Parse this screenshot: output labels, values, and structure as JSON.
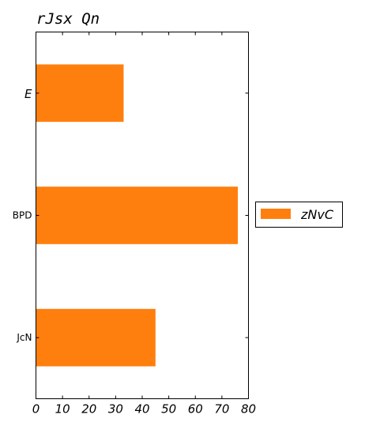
{
  "chart_data": {
    "type": "bar",
    "orientation": "horizontal",
    "title": "rJsx Qn",
    "categories": [
      "E",
      "BPD",
      "JcN"
    ],
    "series": [
      {
        "name": "zNvC",
        "values": [
          33,
          76,
          45
        ],
        "color": "#ff7f0e"
      }
    ],
    "xlim": [
      0,
      80
    ],
    "xticks": [
      "0",
      "10",
      "20",
      "30",
      "40",
      "50",
      "60",
      "70",
      "80"
    ],
    "grid": false,
    "legend_position": "center-right"
  }
}
